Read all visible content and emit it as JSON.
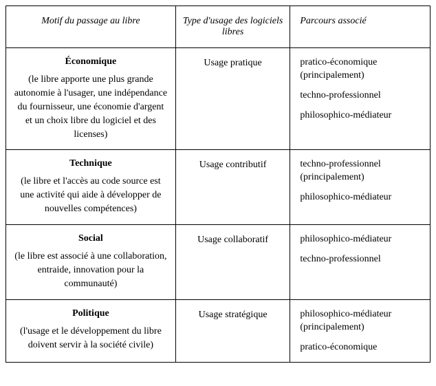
{
  "headers": {
    "motif": "Motif du passage au libre",
    "usage": "Type d'usage des logiciels libres",
    "parcours": "Parcours associé"
  },
  "rows": [
    {
      "title": "Économique",
      "desc": "(le libre apporte une plus grande autonomie à l'usager, une indépendance du fournisseur, une économie d'argent et un choix libre du logiciel et des licenses)",
      "usage": "Usage pratique",
      "parcours": [
        "pratico-économique (principalement)",
        "techno-professionnel",
        "philosophico-médiateur"
      ]
    },
    {
      "title": "Technique",
      "desc": "(le libre et l'accès au code source est une activité qui aide à développer de nouvelles compétences)",
      "usage": "Usage contributif",
      "parcours": [
        "techno-professionnel (principalement)",
        "philosophico-médiateur"
      ]
    },
    {
      "title": "Social",
      "desc": "(le libre est associé à une collaboration, entraide, innovation pour la communauté)",
      "usage": "Usage collaboratif",
      "parcours": [
        "philosophico-médiateur",
        "techno-professionnel"
      ]
    },
    {
      "title": "Politique",
      "desc": "(l'usage et le développement du libre doivent servir à la société civile)",
      "usage": "Usage stratégique",
      "parcours": [
        "philosophico-médiateur (principalement)",
        "pratico-économique"
      ]
    }
  ]
}
